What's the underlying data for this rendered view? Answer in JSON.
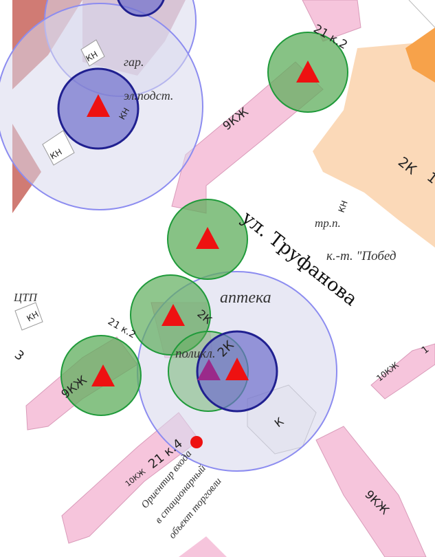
{
  "colors": {
    "background": "#ffffff",
    "pink_building": "#f6c5dc",
    "pink_outline": "#d99ab9",
    "orange_building": "#fbd9b8",
    "orange_dark": "#f7a24a",
    "brown_area": "#c8645c",
    "range_fill": "#d9d9ec",
    "range_stroke": "#8c8cf0",
    "green_fill": "#5fae5c",
    "green_stroke": "#1f9a3a",
    "blue_fill": "#6f6fcc",
    "blue_stroke": "#202090",
    "marker_red": "#ee1111",
    "marker_purple": "#9a2a8a"
  },
  "labels": {
    "gar": "гар.",
    "el_podst": "эл.подст.",
    "kn_1": "КН",
    "kn_2": "КН",
    "kn_3": "КН",
    "kn_4": "КН",
    "kn_5": "КН",
    "bld_21k2_top": "21 к.2",
    "bld_9kzh_top": "9КЖ",
    "bld_2k_right": "2К",
    "bld_1_right": "1",
    "tp": "тр.п.",
    "kt_pobeda": "к.-т. \"Побед",
    "street": "ул. Труфанова",
    "apteka": "аптека",
    "ctp": "ЦТП",
    "num_3": "3",
    "bld_21k2_mid": "21 к.2",
    "bld_2k_mid": "2К",
    "bld_2k_small": "2К",
    "poliklin": "поликл.",
    "bld_9kzh_left": "9КЖ",
    "bld_10kzh_right": "10КЖ",
    "num_1_right": "1",
    "bld_k": "К",
    "bld_10kzh_bottom": "10КЖ",
    "bld_21k4": "21 к.4",
    "orientir_1": "Ориентир входа",
    "orientir_2": "в стационарный",
    "orientir_3": "объект торговли",
    "bld_9kzh_bottom": "9КЖ"
  },
  "markers": [
    {
      "name": "green-zone-marker-1",
      "kind": "green"
    },
    {
      "name": "green-zone-marker-2",
      "kind": "green"
    },
    {
      "name": "green-zone-marker-3",
      "kind": "green"
    },
    {
      "name": "green-zone-marker-4",
      "kind": "green"
    },
    {
      "name": "green-zone-marker-5",
      "kind": "green"
    },
    {
      "name": "blue-zone-marker-1",
      "kind": "blue"
    },
    {
      "name": "blue-zone-marker-2",
      "kind": "blue"
    }
  ]
}
